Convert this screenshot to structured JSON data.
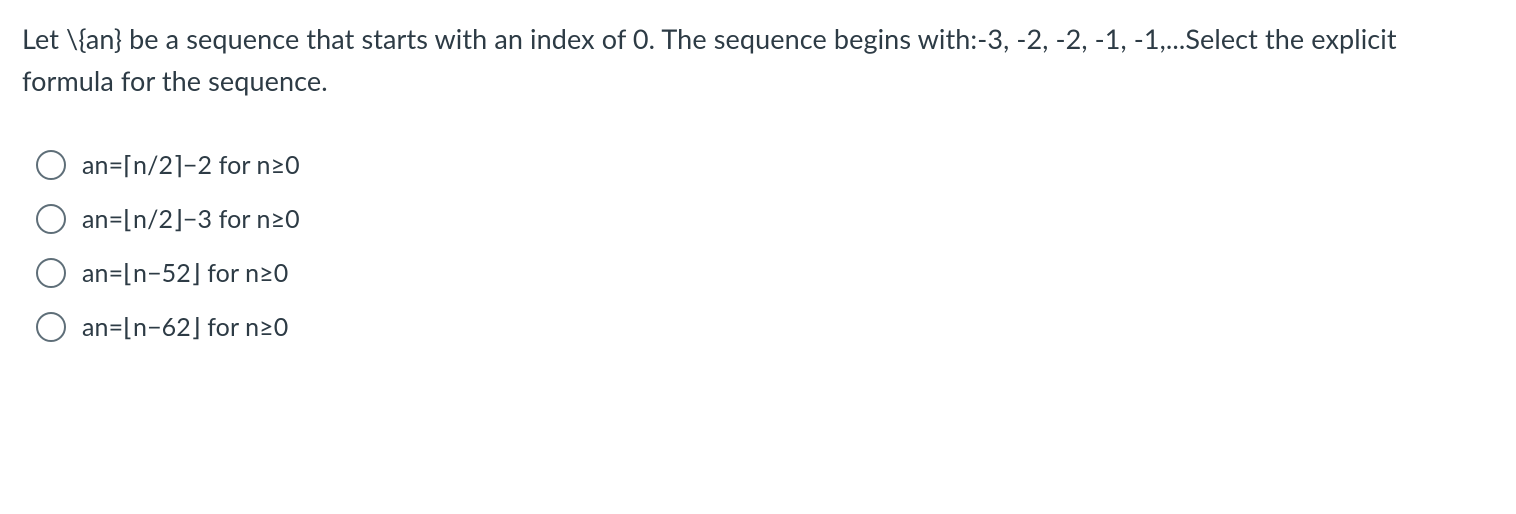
{
  "question": {
    "text": "Let \\{an} be a sequence that starts with an index of 0. The sequence begins with:-3, -2, -2, -1, -1,...Select the explicit formula for the sequence."
  },
  "options": [
    {
      "label": "an=⌈n/2⌉−2 for n≥0"
    },
    {
      "label": "an=⌊n/2⌋−3 for n≥0"
    },
    {
      "label": "an=⌊n−52⌋ for n≥0"
    },
    {
      "label": "an=⌊n−62⌋ for n≥0"
    }
  ],
  "styling": {
    "background_color": "#ffffff",
    "text_color": "#2d3b45",
    "radio_border_color": "#5e6e78",
    "question_fontsize": 27,
    "option_fontsize": 25,
    "radio_diameter": 30,
    "radio_border_width": 2,
    "font_family": "Lato, Helvetica Neue, Arial, sans-serif"
  }
}
